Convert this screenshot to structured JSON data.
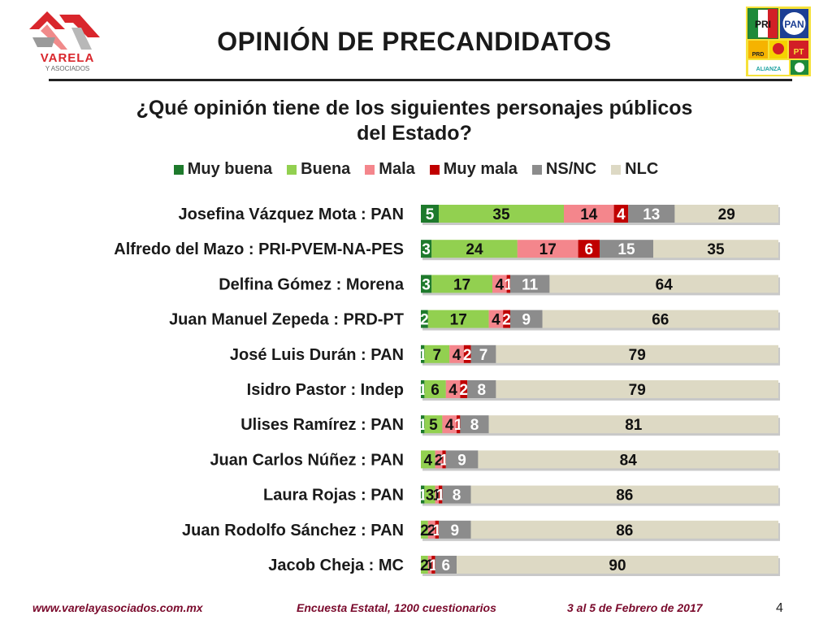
{
  "header": {
    "title": "OPINIÓN DE PRECANDIDATOS",
    "logo_left_text": "VARELA",
    "logo_left_sub": "Y ASOCIADOS",
    "logo_right_labels": [
      "PRI",
      "PAN",
      "PRD",
      "PT",
      "ALIANZA"
    ]
  },
  "chart_data": {
    "type": "bar",
    "stacked": true,
    "orientation": "horizontal",
    "title": "¿Qué opinión tiene de los siguientes personajes públicos del Estado?",
    "legend_position": "top",
    "categories": [
      "Josefina Vázquez Mota : PAN",
      "Alfredo del Mazo : PRI-PVEM-NA-PES",
      "Delfina Gómez : Morena",
      "Juan Manuel Zepeda : PRD-PT",
      "José Luis Durán : PAN",
      "Isidro Pastor : Indep",
      "Ulises Ramírez : PAN",
      "Juan Carlos Núñez : PAN",
      "Laura Rojas : PAN",
      "Juan Rodolfo Sánchez : PAN",
      "Jacob Cheja : MC"
    ],
    "series": [
      {
        "name": "Muy buena",
        "color": "#1e7a2c",
        "values": [
          5,
          3,
          3,
          2,
          1,
          1,
          1,
          0,
          1,
          0,
          0
        ]
      },
      {
        "name": "Buena",
        "color": "#92d050",
        "values": [
          35,
          24,
          17,
          17,
          7,
          6,
          5,
          4,
          3,
          2,
          2
        ]
      },
      {
        "name": "Mala",
        "color": "#f4868c",
        "values": [
          14,
          17,
          4,
          4,
          4,
          4,
          4,
          2,
          1,
          2,
          1
        ]
      },
      {
        "name": "Muy mala",
        "color": "#c00000",
        "values": [
          4,
          6,
          1,
          2,
          2,
          2,
          1,
          1,
          1,
          1,
          1
        ]
      },
      {
        "name": "NS/NC",
        "color": "#8c8c8c",
        "values": [
          13,
          15,
          11,
          9,
          7,
          8,
          8,
          9,
          8,
          9,
          6
        ]
      },
      {
        "name": "NLC",
        "color": "#ddd9c4",
        "values": [
          29,
          35,
          64,
          66,
          79,
          79,
          81,
          84,
          86,
          86,
          90
        ]
      }
    ],
    "xlim": [
      0,
      100
    ],
    "grid": false
  },
  "footer": {
    "website": "www.varelayasociados.com.mx",
    "survey": "Encuesta Estatal, 1200 cuestionarios",
    "date": "3 al 5 de Febrero de 2017",
    "page": "4"
  }
}
